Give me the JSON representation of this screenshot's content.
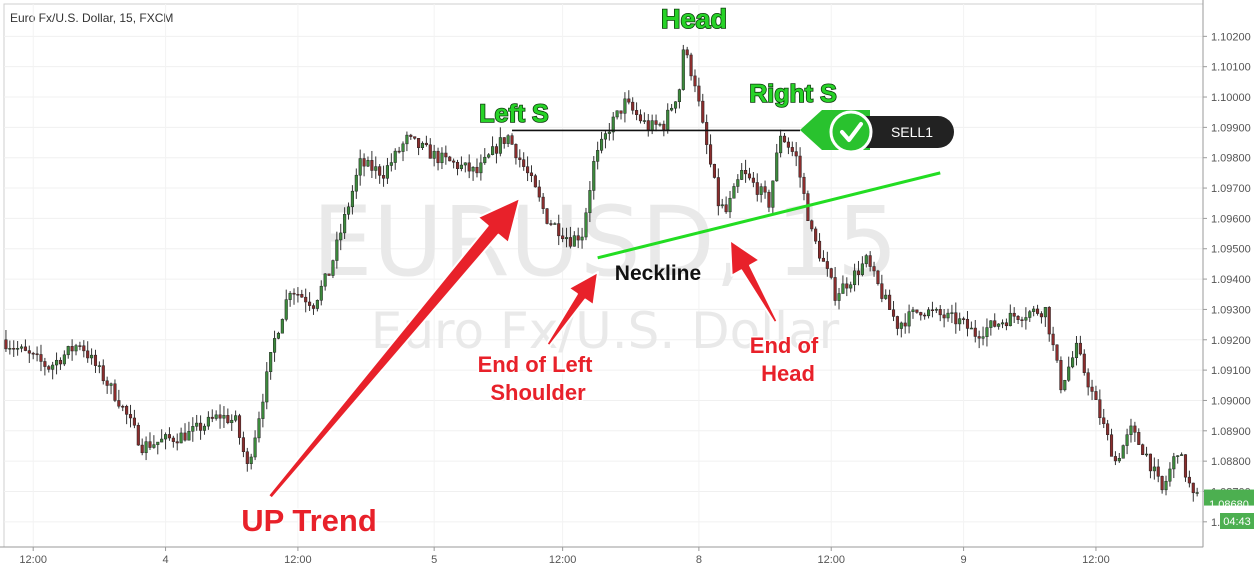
{
  "header": {
    "symbol_title": "Euro Fx/U.S. Dollar, 15, FXCM"
  },
  "watermark": {
    "ticker": "EURUSD, 15",
    "name": "Euro Fx/U.S. Dollar"
  },
  "price_axis": {
    "labels": [
      "1.10200",
      "1.10100",
      "1.10000",
      "1.09900",
      "1.09800",
      "1.09700",
      "1.09600",
      "1.09500",
      "1.09400",
      "1.09300",
      "1.09200",
      "1.09100",
      "1.09000",
      "1.08900",
      "1.08800",
      "1.08700",
      "1.08600"
    ],
    "last_price": "1.08680",
    "countdown": "04:43",
    "last_price_color": "#4caf50"
  },
  "time_axis": {
    "labels": [
      "12:00",
      "4",
      "12:00",
      "5",
      "12:00",
      "8",
      "12:00",
      "9",
      "12:00"
    ]
  },
  "annotations": {
    "head": "Head",
    "left_shoulder": "Left S",
    "right_shoulder": "Right S",
    "neckline": "Neckline",
    "end_left_shoulder": [
      "End of Left",
      "Shoulder"
    ],
    "end_head": [
      "End of",
      "Head"
    ],
    "up_trend": "UP Trend",
    "sell_label": "SELL1",
    "colors": {
      "green": "#27d327",
      "red": "#e8212a",
      "neckline": "#22dd22"
    }
  },
  "chart_data": {
    "type": "candlestick",
    "title": "Euro Fx/U.S. Dollar, 15, FXCM",
    "xlabel": "",
    "ylabel": "",
    "ylim": [
      1.0855,
      1.103
    ],
    "x_ticks": [
      "12:00",
      "4",
      "12:00",
      "5",
      "12:00",
      "8",
      "12:00",
      "9",
      "12:00"
    ],
    "grid": true,
    "trend_path": [
      {
        "i": 0,
        "p": 1.092
      },
      {
        "i": 12,
        "p": 1.0911
      },
      {
        "i": 20,
        "p": 1.0919
      },
      {
        "i": 30,
        "p": 1.09
      },
      {
        "i": 36,
        "p": 1.0885
      },
      {
        "i": 48,
        "p": 1.0889
      },
      {
        "i": 56,
        "p": 1.0895
      },
      {
        "i": 60,
        "p": 1.0893
      },
      {
        "i": 63,
        "p": 1.0878
      },
      {
        "i": 65,
        "p": 1.0889
      },
      {
        "i": 70,
        "p": 1.092
      },
      {
        "i": 74,
        "p": 1.0937
      },
      {
        "i": 80,
        "p": 1.0932
      },
      {
        "i": 84,
        "p": 1.0942
      },
      {
        "i": 88,
        "p": 1.096
      },
      {
        "i": 92,
        "p": 1.0978
      },
      {
        "i": 98,
        "p": 1.0975
      },
      {
        "i": 104,
        "p": 1.0986
      },
      {
        "i": 112,
        "p": 1.098
      },
      {
        "i": 122,
        "p": 1.0975
      },
      {
        "i": 128,
        "p": 1.0985
      },
      {
        "i": 130,
        "p": 1.0987
      },
      {
        "i": 136,
        "p": 1.0972
      },
      {
        "i": 140,
        "p": 1.096
      },
      {
        "i": 146,
        "p": 1.0953
      },
      {
        "i": 149,
        "p": 1.0955
      },
      {
        "i": 152,
        "p": 1.0978
      },
      {
        "i": 156,
        "p": 1.099
      },
      {
        "i": 160,
        "p": 1.0998
      },
      {
        "i": 166,
        "p": 1.099
      },
      {
        "i": 170,
        "p": 1.0991
      },
      {
        "i": 174,
        "p": 1.1003
      },
      {
        "i": 175,
        "p": 1.1016
      },
      {
        "i": 178,
        "p": 1.1005
      },
      {
        "i": 180,
        "p": 1.099
      },
      {
        "i": 184,
        "p": 1.0965
      },
      {
        "i": 186,
        "p": 1.0962
      },
      {
        "i": 190,
        "p": 1.0975
      },
      {
        "i": 194,
        "p": 1.097
      },
      {
        "i": 197,
        "p": 1.0965
      },
      {
        "i": 200,
        "p": 1.0988
      },
      {
        "i": 204,
        "p": 1.098
      },
      {
        "i": 208,
        "p": 1.0955
      },
      {
        "i": 212,
        "p": 1.0942
      },
      {
        "i": 214,
        "p": 1.0935
      },
      {
        "i": 218,
        "p": 1.094
      },
      {
        "i": 222,
        "p": 1.0946
      },
      {
        "i": 226,
        "p": 1.0935
      },
      {
        "i": 230,
        "p": 1.0925
      },
      {
        "i": 236,
        "p": 1.093
      },
      {
        "i": 246,
        "p": 1.0926
      },
      {
        "i": 250,
        "p": 1.0922
      },
      {
        "i": 260,
        "p": 1.0928
      },
      {
        "i": 268,
        "p": 1.093
      },
      {
        "i": 272,
        "p": 1.0905
      },
      {
        "i": 276,
        "p": 1.0917
      },
      {
        "i": 282,
        "p": 1.0895
      },
      {
        "i": 286,
        "p": 1.088
      },
      {
        "i": 290,
        "p": 1.089
      },
      {
        "i": 294,
        "p": 1.0882
      },
      {
        "i": 298,
        "p": 1.087
      },
      {
        "i": 302,
        "p": 1.0884
      },
      {
        "i": 306,
        "p": 1.0868
      }
    ],
    "neckline": {
      "from": {
        "i": 152,
        "p": 1.0947
      },
      "to": {
        "i": 240,
        "p": 1.0975
      }
    },
    "resistance_line": {
      "from": {
        "i": 130,
        "p": 1.0989
      },
      "to": {
        "i": 204,
        "p": 1.0989
      }
    },
    "last_price": 1.0868
  }
}
